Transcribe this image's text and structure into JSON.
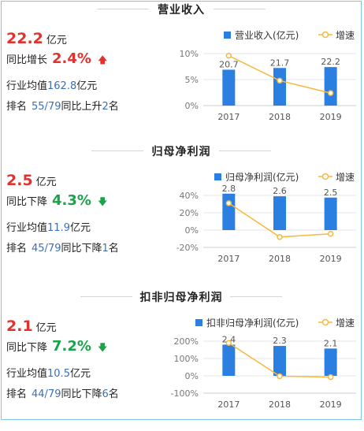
{
  "legend_line_label": "增速",
  "sections": [
    {
      "title": "营业收入",
      "value": "22.2",
      "unit": "亿元",
      "change_label": "同比增长",
      "change_value": "2.4%",
      "change_direction": "up",
      "avg_label": "行业均值",
      "avg_value": "162.8",
      "avg_unit": "亿元",
      "rank_label": "排名",
      "rank_value": "55/79",
      "rank_change_label": "同比上升",
      "rank_change_value": "2",
      "rank_unit": "名"
    },
    {
      "title": "归母净利润",
      "value": "2.5",
      "unit": "亿元",
      "change_label": "同比下降",
      "change_value": "4.3%",
      "change_direction": "down",
      "avg_label": "行业均值",
      "avg_value": "11.9",
      "avg_unit": "亿元",
      "rank_label": "排名",
      "rank_value": "45/79",
      "rank_change_label": "同比下降",
      "rank_change_value": "1",
      "rank_unit": "名"
    },
    {
      "title": "扣非归母净利润",
      "value": "2.1",
      "unit": "亿元",
      "change_label": "同比下降",
      "change_value": "7.2%",
      "change_direction": "down",
      "avg_label": "行业均值",
      "avg_value": "10.5",
      "avg_unit": "亿元",
      "rank_label": "排名",
      "rank_value": "44/79",
      "rank_change_label": "同比下降",
      "rank_change_value": "6",
      "rank_unit": "名"
    }
  ],
  "colors": {
    "bar": "#2b7fe0",
    "line": "#f5b93e",
    "up": "#e3312d",
    "down": "#1aa34a",
    "highlight": "#3d6fb6"
  },
  "chart_data": [
    {
      "type": "bar",
      "categories": [
        "2017",
        "2018",
        "2019"
      ],
      "series": [
        {
          "name": "营业收入(亿元)",
          "type": "bar",
          "values": [
            20.7,
            21.7,
            22.2
          ]
        },
        {
          "name": "增速",
          "type": "line",
          "values": [
            9.6,
            4.8,
            2.4
          ]
        }
      ],
      "y_ticks": [
        "10%",
        "5%",
        "0%"
      ],
      "y_range": [
        0,
        10
      ],
      "bar_max": 30,
      "legend": "top-right"
    },
    {
      "type": "bar",
      "categories": [
        "2017",
        "2018",
        "2019"
      ],
      "series": [
        {
          "name": "归母净利润(亿元)",
          "type": "bar",
          "values": [
            2.8,
            2.6,
            2.5
          ]
        },
        {
          "name": "增速",
          "type": "line",
          "values": [
            31,
            -8,
            -4.3
          ]
        }
      ],
      "y_ticks": [
        "40%",
        "20%",
        "0%",
        "-20%"
      ],
      "y_range": [
        -20,
        40
      ],
      "bar_max": 4,
      "legend": "top-right"
    },
    {
      "type": "bar",
      "categories": [
        "2017",
        "2018",
        "2019"
      ],
      "series": [
        {
          "name": "扣非归母净利润(亿元)",
          "type": "bar",
          "values": [
            2.4,
            2.3,
            2.1
          ]
        },
        {
          "name": "增速",
          "type": "line",
          "values": [
            190,
            -2,
            -7.2
          ]
        }
      ],
      "y_ticks": [
        "200%",
        "100%",
        "0%",
        "-100%"
      ],
      "y_range": [
        -100,
        200
      ],
      "bar_max": 4,
      "legend": "top-right"
    }
  ]
}
